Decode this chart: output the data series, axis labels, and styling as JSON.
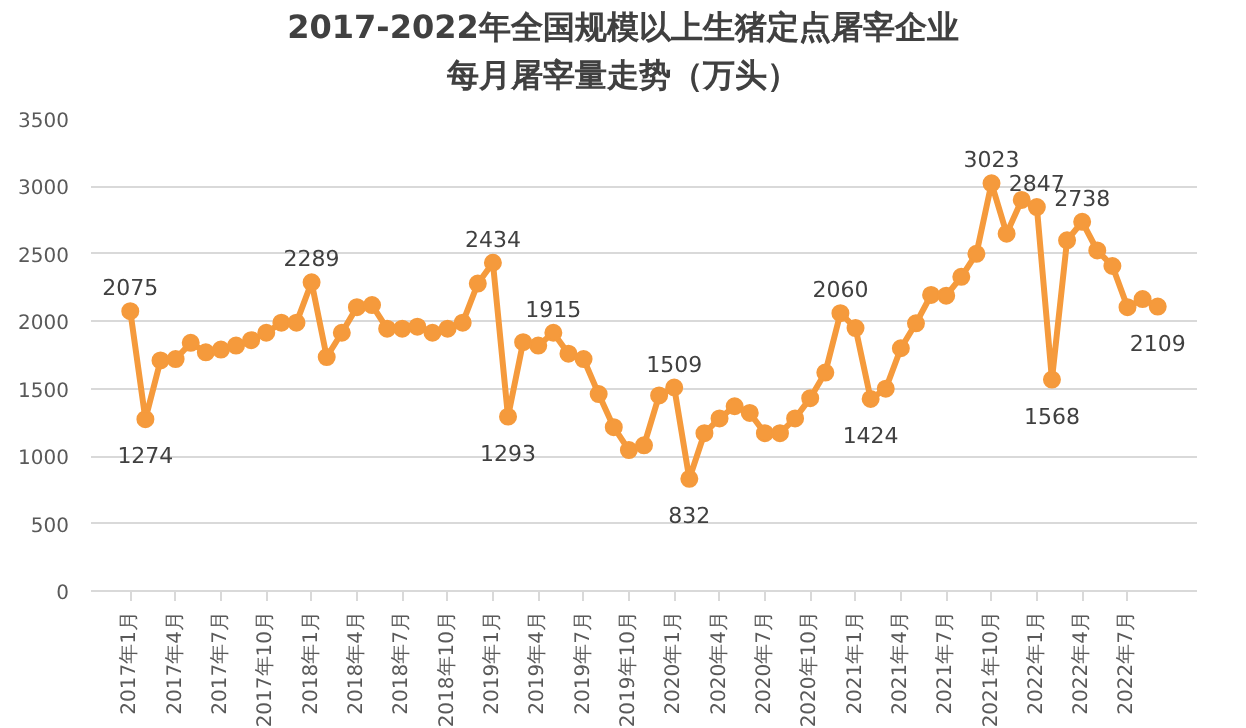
{
  "chart_data": {
    "type": "line",
    "title": "2017-2022年全国规模以上生猪定点屠宰企业",
    "subtitle": "每月屠宰量走势（万头）",
    "categories": [
      "2017年1月",
      null,
      null,
      "2017年4月",
      null,
      null,
      "2017年7月",
      null,
      null,
      "2017年10月",
      null,
      null,
      "2018年1月",
      null,
      null,
      "2018年4月",
      null,
      null,
      "2018年7月",
      null,
      null,
      "2018年10月",
      null,
      null,
      "2019年1月",
      null,
      null,
      "2019年4月",
      null,
      null,
      "2019年7月",
      null,
      null,
      "2019年10月",
      null,
      null,
      "2020年1月",
      null,
      null,
      "2020年4月",
      null,
      null,
      "2020年7月",
      null,
      null,
      "2020年10月",
      null,
      null,
      "2021年1月",
      null,
      null,
      "2021年4月",
      null,
      null,
      "2021年7月",
      null,
      null,
      "2021年10月",
      null,
      null,
      "2022年1月",
      null,
      null,
      "2022年4月",
      null,
      null,
      "2022年7月",
      null,
      null
    ],
    "series": [
      {
        "color": "#f59a3c",
        "values": [
          2075,
          1274,
          1710,
          1720,
          1840,
          1770,
          1790,
          1820,
          1860,
          1915,
          1990,
          1990,
          2289,
          1735,
          1915,
          2105,
          2120,
          1945,
          1945,
          1960,
          1915,
          1945,
          1990,
          2280,
          2434,
          1293,
          1845,
          1820,
          1915,
          1760,
          1720,
          1460,
          1215,
          1045,
          1080,
          1450,
          1509,
          832,
          1170,
          1280,
          1370,
          1320,
          1170,
          1170,
          1280,
          1430,
          1620,
          2060,
          1950,
          1424,
          1500,
          1800,
          1985,
          2195,
          2190,
          2330,
          2500,
          3023,
          2650,
          2900,
          2847,
          1568,
          2600,
          2738,
          2525,
          2410,
          2105,
          2165,
          2109
        ],
        "value_labels": [
          "2075",
          "1274",
          null,
          null,
          null,
          null,
          null,
          null,
          null,
          null,
          null,
          null,
          "2289",
          null,
          null,
          null,
          null,
          null,
          null,
          null,
          null,
          null,
          null,
          null,
          "2434",
          "1293",
          null,
          null,
          "1915",
          null,
          null,
          null,
          null,
          null,
          null,
          null,
          "1509",
          "832",
          null,
          null,
          null,
          null,
          null,
          null,
          null,
          null,
          null,
          "2060",
          null,
          "1424",
          null,
          null,
          null,
          null,
          null,
          null,
          null,
          "3023",
          null,
          null,
          "2847",
          "1568",
          null,
          "2738",
          null,
          null,
          null,
          null,
          "2109"
        ]
      }
    ],
    "ylim": [
      0,
      3500
    ],
    "yticks": [
      0,
      500,
      1000,
      1500,
      2000,
      2500,
      3000,
      3500
    ],
    "grid": "y",
    "marker": "circle",
    "line_style": "solid"
  }
}
